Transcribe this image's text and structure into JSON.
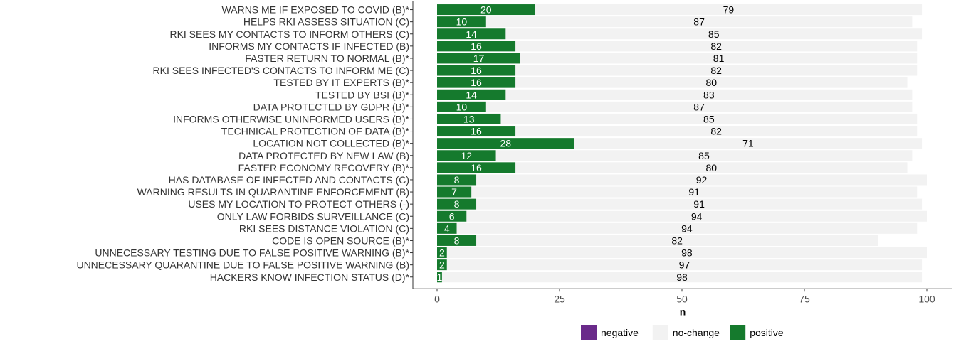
{
  "chart_data": {
    "type": "bar",
    "orientation": "horizontal",
    "stacked": true,
    "xlabel": "n",
    "ylabel": "",
    "xlim": [
      0,
      100
    ],
    "xticks": [
      0,
      25,
      50,
      75,
      100
    ],
    "grid": false,
    "legend_position": "bottom",
    "categories": [
      "WARNS ME IF EXPOSED TO COVID (B)*",
      "HELPS RKI ASSESS SITUATION (C)",
      "RKI SEES MY CONTACTS TO INFORM OTHERS (C)",
      "INFORMS MY CONTACTS IF INFECTED (B)",
      "FASTER RETURN TO NORMAL (B)*",
      "RKI SEES INFECTED'S CONTACTS TO INFORM ME (C)",
      "TESTED BY IT EXPERTS (B)*",
      "TESTED BY BSI (B)*",
      "DATA PROTECTED BY GDPR (B)*",
      "INFORMS OTHERWISE UNINFORMED USERS (B)*",
      "TECHNICAL PROTECTION OF DATA (B)*",
      "LOCATION NOT COLLECTED (B)*",
      "DATA PROTECTED BY NEW LAW (B)",
      "FASTER ECONOMY RECOVERY (B)*",
      "HAS DATABASE OF INFECTED AND CONTACTS (C)",
      "WARNING RESULTS IN QUARANTINE ENFORCEMENT (B)",
      "USES MY LOCATION TO PROTECT OTHERS (-)",
      "ONLY LAW FORBIDS SURVEILLANCE (C)",
      "RKI SEES DISTANCE VIOLATION (C)",
      "CODE IS OPEN SOURCE (B)*",
      "UNNECESSARY TESTING DUE TO FALSE POSITIVE WARNING (B)*",
      "UNNECESSARY QUARANTINE DUE TO FALSE POSITIVE WARNING (B)",
      "HACKERS KNOW INFECTION STATUS (D)*"
    ],
    "series": [
      {
        "name": "positive",
        "color": "#157a2d",
        "values": [
          20,
          10,
          14,
          16,
          17,
          16,
          16,
          14,
          10,
          13,
          16,
          28,
          12,
          16,
          8,
          7,
          8,
          6,
          4,
          8,
          2,
          2,
          1
        ]
      },
      {
        "name": "no-change",
        "color": "#f2f2f2",
        "values": [
          79,
          87,
          85,
          82,
          81,
          82,
          80,
          83,
          87,
          85,
          82,
          71,
          85,
          80,
          92,
          91,
          91,
          94,
          94,
          82,
          98,
          97,
          98
        ]
      },
      {
        "name": "negative",
        "color": "#6a2a8a",
        "values": [
          0,
          0,
          0,
          0,
          0,
          0,
          0,
          0,
          0,
          0,
          0,
          0,
          0,
          0,
          0,
          0,
          0,
          0,
          0,
          0,
          0,
          0,
          0
        ]
      }
    ],
    "legend": [
      {
        "name": "negative",
        "color": "#6a2a8a"
      },
      {
        "name": "no-change",
        "color": "#f2f2f2"
      },
      {
        "name": "positive",
        "color": "#157a2d"
      }
    ]
  }
}
